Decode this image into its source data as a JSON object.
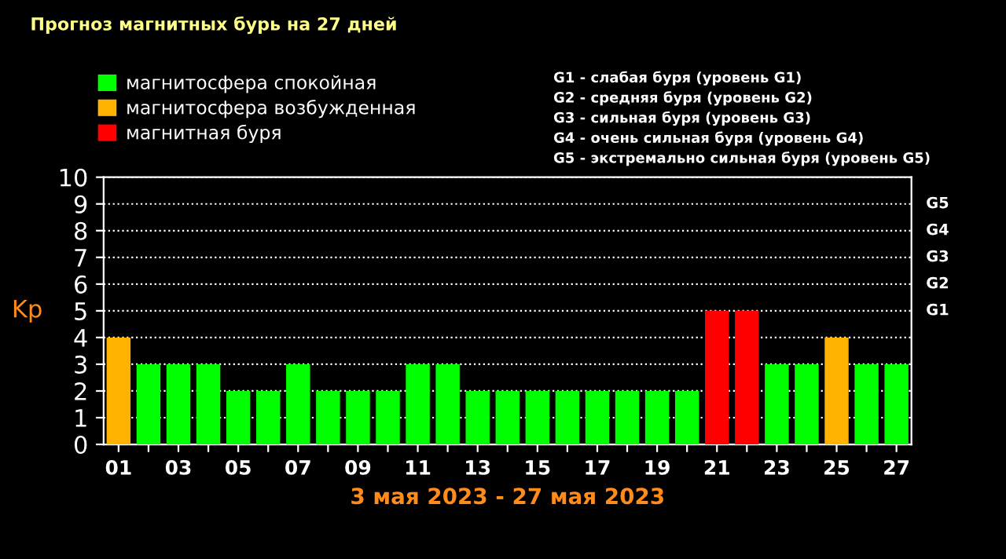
{
  "chart_data": {
    "type": "bar",
    "title": "Прогноз магнитных бурь на 27 дней",
    "xlabel": "3 мая 2023 - 27 мая 2023",
    "ylabel": "Kp",
    "categories": [
      "01",
      null,
      "03",
      null,
      "05",
      null,
      "07",
      null,
      "09",
      null,
      "11",
      null,
      "13",
      null,
      "15",
      null,
      "17",
      null,
      "19",
      null,
      "21",
      null,
      "23",
      null,
      "25",
      null,
      "27"
    ],
    "series": [
      {
        "name": "магнитосфера спокойная",
        "color": "#00ff00",
        "values": [
          null,
          3,
          3,
          3,
          2,
          2,
          3,
          2,
          2,
          2,
          3,
          3,
          2,
          2,
          2,
          2,
          2,
          2,
          2,
          2,
          null,
          null,
          3,
          3,
          null,
          3,
          3
        ]
      },
      {
        "name": "магнитосфера возбужденная",
        "color": "#ffb300",
        "values": [
          4,
          null,
          null,
          null,
          null,
          null,
          null,
          null,
          null,
          null,
          null,
          null,
          null,
          null,
          null,
          null,
          null,
          null,
          null,
          null,
          null,
          null,
          null,
          null,
          4,
          null,
          null
        ]
      },
      {
        "name": "магнитная буря",
        "color": "#ff0000",
        "values": [
          null,
          null,
          null,
          null,
          null,
          null,
          null,
          null,
          null,
          null,
          null,
          null,
          null,
          null,
          null,
          null,
          null,
          null,
          null,
          null,
          5,
          5,
          null,
          null,
          null,
          null,
          null
        ]
      }
    ],
    "ylim": [
      0,
      10
    ],
    "yticks": [
      0,
      1,
      2,
      3,
      4,
      5,
      6,
      7,
      8,
      9,
      10
    ],
    "grid": "y",
    "legend": "top left",
    "annotations": [
      "G1 - слабая буря (уровень G1)",
      "G2 - средняя буря (уровень G2)",
      "G3 - сильная буря (уровень G3)",
      "G4 - очень сильная буря (уровень G4)",
      "G5 - экстремально сильная буря (уровень G5)",
      "G1",
      "G2",
      "G3",
      "G4",
      "G5"
    ]
  }
}
